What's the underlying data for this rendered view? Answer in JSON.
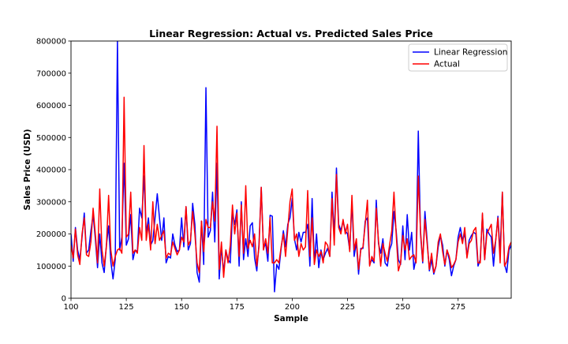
{
  "chart_data": {
    "type": "line",
    "title": "Linear Regression: Actual vs. Predicted Sales Price",
    "xlabel": "Sample",
    "ylabel": "Sales Price (USD)",
    "xlim": [
      100,
      299
    ],
    "ylim": [
      0,
      800000
    ],
    "x_ticks": [
      100,
      125,
      150,
      175,
      200,
      225,
      250,
      275
    ],
    "y_ticks": [
      0,
      100000,
      200000,
      300000,
      400000,
      500000,
      600000,
      700000,
      800000
    ],
    "legend_position": "top-right",
    "grid": false,
    "x_start": 100,
    "series": [
      {
        "name": "Linear Regression",
        "color": "#0000ff",
        "values": [
          200000,
          115000,
          220000,
          150000,
          120000,
          190000,
          265000,
          140000,
          150000,
          210000,
          260000,
          185000,
          95000,
          200000,
          110000,
          80000,
          165000,
          225000,
          115000,
          60000,
          120000,
          800000,
          150000,
          190000,
          420000,
          165000,
          185000,
          260000,
          120000,
          150000,
          145000,
          280000,
          250000,
          380000,
          200000,
          250000,
          165000,
          180000,
          250000,
          325000,
          250000,
          180000,
          250000,
          110000,
          130000,
          125000,
          200000,
          165000,
          145000,
          150000,
          250000,
          160000,
          285000,
          150000,
          170000,
          295000,
          230000,
          80000,
          50000,
          240000,
          105000,
          655000,
          190000,
          210000,
          330000,
          175000,
          420000,
          60000,
          160000,
          80000,
          150000,
          120000,
          110000,
          265000,
          230000,
          275000,
          100000,
          300000,
          120000,
          185000,
          130000,
          225000,
          235000,
          125000,
          85000,
          170000,
          345000,
          155000,
          170000,
          115000,
          258000,
          255000,
          20000,
          105000,
          90000,
          155000,
          210000,
          160000,
          230000,
          250000,
          310000,
          185000,
          150000,
          205000,
          175000,
          205000,
          205000,
          230000,
          100000,
          310000,
          110000,
          200000,
          95000,
          150000,
          120000,
          140000,
          155000,
          130000,
          330000,
          195000,
          405000,
          230000,
          210000,
          240000,
          210000,
          200000,
          150000,
          300000,
          130000,
          175000,
          75000,
          155000,
          155000,
          240000,
          250000,
          105000,
          120000,
          110000,
          305000,
          170000,
          140000,
          185000,
          110000,
          100000,
          150000,
          170000,
          270000,
          210000,
          120000,
          105000,
          225000,
          120000,
          260000,
          150000,
          205000,
          90000,
          125000,
          520000,
          200000,
          110000,
          270000,
          180000,
          85000,
          120000,
          75000,
          100000,
          160000,
          195000,
          165000,
          100000,
          150000,
          120000,
          70000,
          100000,
          120000,
          190000,
          220000,
          180000,
          200000,
          130000,
          180000,
          195000,
          205000,
          200000,
          100000,
          120000,
          260000,
          120000,
          215000,
          200000,
          190000,
          100000,
          180000,
          255000,
          140000,
          330000,
          105000,
          80000,
          150000,
          165000
        ]
      },
      {
        "name": "Actual",
        "color": "#ff0000",
        "values": [
          165000,
          125000,
          215000,
          135000,
          105000,
          200000,
          250000,
          135000,
          130000,
          175000,
          280000,
          200000,
          110000,
          340000,
          150000,
          100000,
          160000,
          320000,
          150000,
          100000,
          130000,
          150000,
          155000,
          140000,
          625000,
          190000,
          200000,
          330000,
          140000,
          150000,
          140000,
          220000,
          180000,
          475000,
          180000,
          230000,
          150000,
          300000,
          170000,
          230000,
          180000,
          195000,
          210000,
          125000,
          140000,
          135000,
          175000,
          155000,
          135000,
          150000,
          190000,
          175000,
          285000,
          165000,
          180000,
          270000,
          200000,
          110000,
          80000,
          240000,
          145000,
          245000,
          220000,
          220000,
          300000,
          240000,
          535000,
          90000,
          175000,
          65000,
          150000,
          110000,
          165000,
          290000,
          200000,
          265000,
          130000,
          290000,
          140000,
          350000,
          155000,
          180000,
          160000,
          200000,
          100000,
          160000,
          345000,
          150000,
          185000,
          140000,
          250000,
          110000,
          110000,
          120000,
          110000,
          160000,
          200000,
          130000,
          215000,
          300000,
          340000,
          180000,
          200000,
          130000,
          170000,
          150000,
          160000,
          335000,
          130000,
          250000,
          105000,
          150000,
          130000,
          145000,
          110000,
          175000,
          165000,
          130000,
          310000,
          165000,
          385000,
          220000,
          200000,
          245000,
          200000,
          230000,
          145000,
          320000,
          150000,
          185000,
          90000,
          150000,
          160000,
          230000,
          305000,
          100000,
          130000,
          115000,
          280000,
          180000,
          100000,
          170000,
          140000,
          115000,
          165000,
          210000,
          330000,
          200000,
          85000,
          110000,
          195000,
          150000,
          185000,
          120000,
          130000,
          135000,
          110000,
          380000,
          210000,
          115000,
          245000,
          170000,
          90000,
          140000,
          80000,
          100000,
          175000,
          200000,
          145000,
          105000,
          150000,
          130000,
          95000,
          105000,
          120000,
          175000,
          200000,
          170000,
          220000,
          125000,
          170000,
          180000,
          210000,
          220000,
          110000,
          110000,
          265000,
          120000,
          200000,
          215000,
          230000,
          140000,
          180000,
          250000,
          110000,
          330000,
          100000,
          115000,
          160000,
          175000
        ]
      }
    ]
  }
}
